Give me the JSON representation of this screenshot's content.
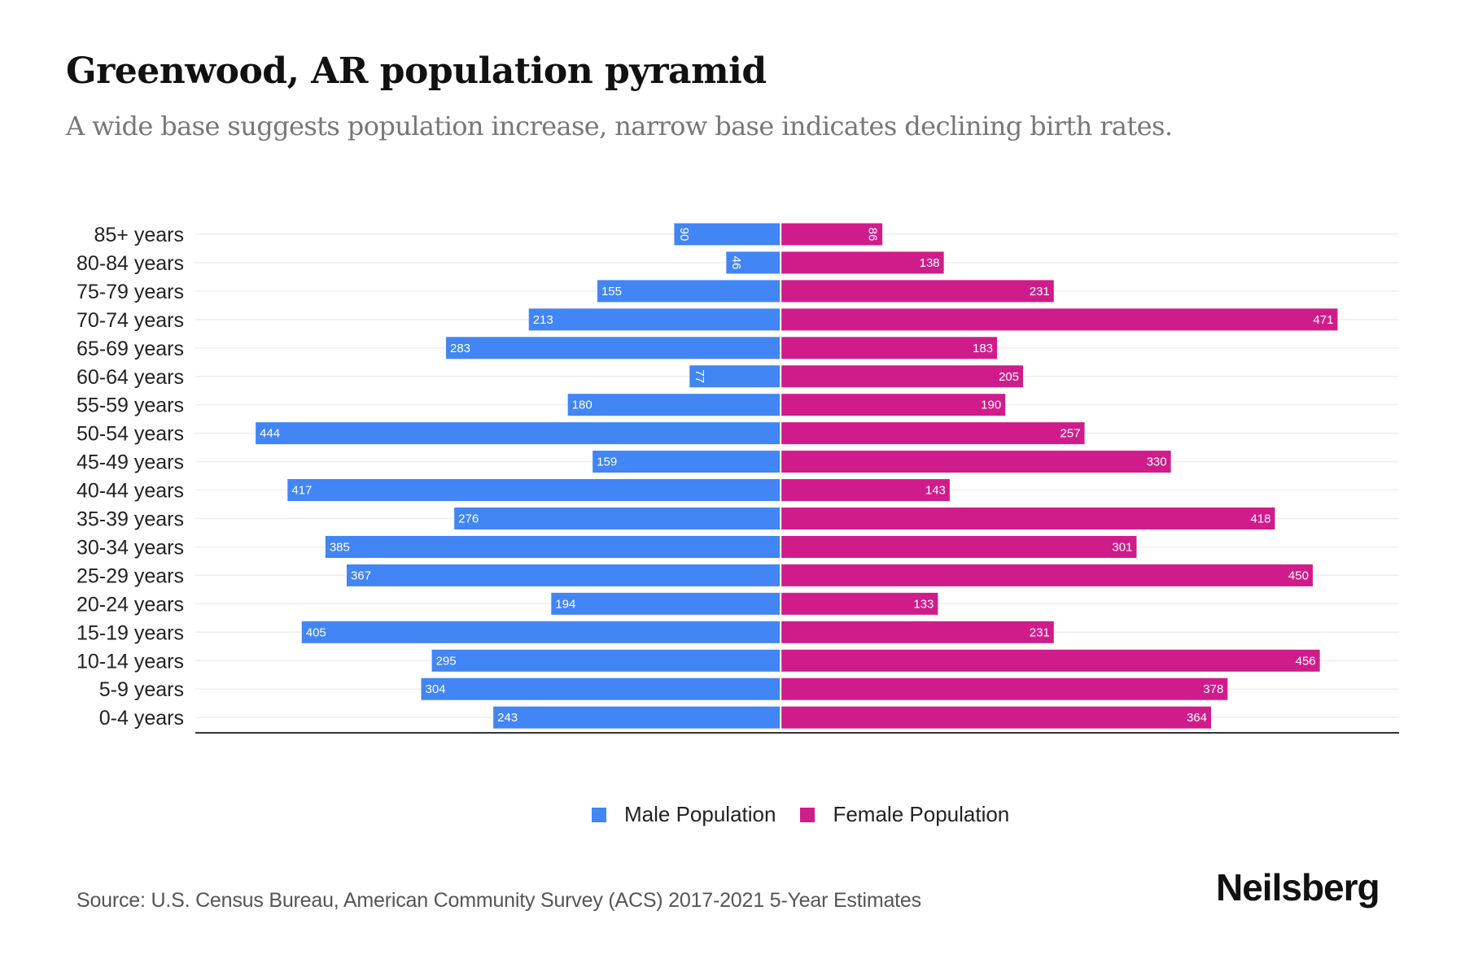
{
  "header": {
    "title": "Greenwood, AR population pyramid",
    "subtitle": "A wide base suggests population increase, narrow base indicates declining birth rates."
  },
  "colors": {
    "male": "#4285F4",
    "female": "#D01C8B",
    "gridline": "#EEEEEE",
    "axis": "#333333"
  },
  "chart_data": {
    "type": "bar",
    "orientation": "horizontal-pyramid",
    "title": "Greenwood, AR population pyramid",
    "subtitle": "A wide base suggests population increase, narrow base indicates declining birth rates.",
    "xlabel": "",
    "ylabel": "",
    "categories": [
      "85+ years",
      "80-84 years",
      "75-79 years",
      "70-74 years",
      "65-69 years",
      "60-64 years",
      "55-59 years",
      "50-54 years",
      "45-49 years",
      "40-44 years",
      "35-39 years",
      "30-34 years",
      "25-29 years",
      "20-24 years",
      "15-19 years",
      "10-14 years",
      "5-9 years",
      "0-4 years"
    ],
    "series": [
      {
        "name": "Male Population",
        "side": "left",
        "color": "#4285F4",
        "values": [
          90,
          46,
          155,
          213,
          283,
          77,
          180,
          444,
          159,
          417,
          276,
          385,
          367,
          194,
          405,
          295,
          304,
          243
        ]
      },
      {
        "name": "Female Population",
        "side": "right",
        "color": "#D01C8B",
        "values": [
          86,
          138,
          231,
          471,
          183,
          205,
          190,
          257,
          330,
          143,
          418,
          301,
          450,
          133,
          231,
          456,
          378,
          364
        ]
      }
    ],
    "xlim": [
      -495,
      523
    ],
    "grid": true,
    "data_labels": true,
    "legend": {
      "position": "bottom-center",
      "entries": [
        "Male Population",
        "Female Population"
      ]
    }
  },
  "legend": {
    "male_label": "Male Population",
    "female_label": "Female Population"
  },
  "footer": {
    "source": "Source: U.S. Census Bureau, American Community Survey (ACS) 2017-2021 5-Year Estimates",
    "brand": "Neilsberg"
  }
}
